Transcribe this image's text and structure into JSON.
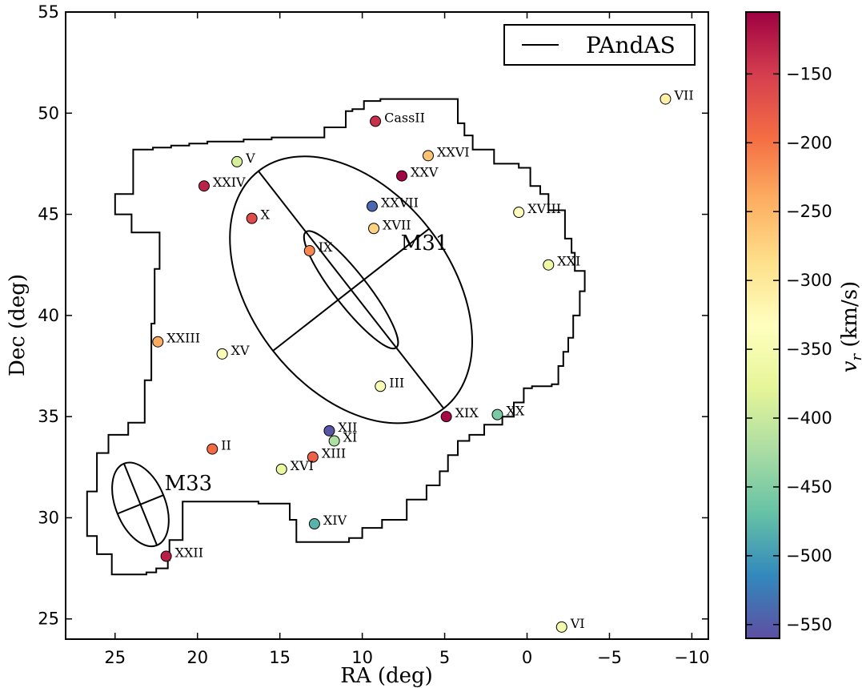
{
  "chart_data": {
    "type": "scatter",
    "xlabel": "RA (deg)",
    "ylabel": "Dec (deg)",
    "xlim": [
      28,
      -11
    ],
    "ylim": [
      24,
      55
    ],
    "xticks": [
      25,
      20,
      15,
      10,
      5,
      0,
      -5,
      -10
    ],
    "xtick_labels": [
      "25",
      "20",
      "15",
      "10",
      "5",
      "0",
      "−5",
      "−10"
    ],
    "yticks": [
      25,
      30,
      35,
      40,
      45,
      50,
      55
    ],
    "ytick_labels": [
      "25",
      "30",
      "35",
      "40",
      "45",
      "50",
      "55"
    ],
    "colorbar": {
      "label": "v_r (km/s)",
      "label_main": "v",
      "label_sub": "r",
      "label_rest": " (km/s)",
      "range": [
        -560,
        -105
      ],
      "ticks": [
        -150,
        -200,
        -250,
        -300,
        -350,
        -400,
        -450,
        -500,
        -550
      ],
      "tick_labels": [
        "−150",
        "−200",
        "−250",
        "−300",
        "−350",
        "−400",
        "−450",
        "−500",
        "−550"
      ],
      "colormap": "Spectral"
    },
    "legend": {
      "position": "top-right",
      "entries": [
        {
          "label": "PAndAS",
          "style": "line",
          "color": "#000000"
        }
      ]
    },
    "points": [
      {
        "name": "CassII",
        "ra": 9.2,
        "dec": 49.6,
        "vr": -140
      },
      {
        "name": "XXVI",
        "ra": 6.0,
        "dec": 47.9,
        "vr": -260
      },
      {
        "name": "XXV",
        "ra": 7.6,
        "dec": 46.9,
        "vr": -108
      },
      {
        "name": "V",
        "ra": 17.6,
        "dec": 47.6,
        "vr": -390
      },
      {
        "name": "XXIV",
        "ra": 19.6,
        "dec": 46.4,
        "vr": -130
      },
      {
        "name": "XXVII",
        "ra": 9.4,
        "dec": 45.4,
        "vr": -540
      },
      {
        "name": "XVII",
        "ra": 9.3,
        "dec": 44.3,
        "vr": -275
      },
      {
        "name": "X",
        "ra": 16.7,
        "dec": 44.8,
        "vr": -165
      },
      {
        "name": "XVIII",
        "ra": 0.5,
        "dec": 45.1,
        "vr": -330
      },
      {
        "name": "IX",
        "ra": 13.2,
        "dec": 43.2,
        "vr": -215
      },
      {
        "name": "XXI",
        "ra": -1.3,
        "dec": 42.5,
        "vr": -362
      },
      {
        "name": "VII",
        "ra": -8.4,
        "dec": 50.7,
        "vr": -310
      },
      {
        "name": "XXIII",
        "ra": 22.4,
        "dec": 38.7,
        "vr": -240
      },
      {
        "name": "XV",
        "ra": 18.5,
        "dec": 38.1,
        "vr": -340
      },
      {
        "name": "III",
        "ra": 8.9,
        "dec": 36.5,
        "vr": -345
      },
      {
        "name": "XIX",
        "ra": 4.9,
        "dec": 35.0,
        "vr": -112
      },
      {
        "name": "XX",
        "ra": 1.8,
        "dec": 35.1,
        "vr": -456
      },
      {
        "name": "XII",
        "ra": 12.0,
        "dec": 34.3,
        "vr": -555
      },
      {
        "name": "XI",
        "ra": 11.7,
        "dec": 33.8,
        "vr": -420
      },
      {
        "name": "II",
        "ra": 19.1,
        "dec": 33.4,
        "vr": -194
      },
      {
        "name": "XIII",
        "ra": 13.0,
        "dec": 33.0,
        "vr": -185
      },
      {
        "name": "XVI",
        "ra": 14.9,
        "dec": 32.4,
        "vr": -367
      },
      {
        "name": "XIV",
        "ra": 12.9,
        "dec": 29.7,
        "vr": -481
      },
      {
        "name": "XXII",
        "ra": 21.9,
        "dec": 28.1,
        "vr": -127
      },
      {
        "name": "VI",
        "ra": -2.1,
        "dec": 24.6,
        "vr": -354
      }
    ],
    "galaxies": [
      {
        "name": "M31",
        "ra": 10.68,
        "dec": 41.27,
        "rx": 5.4,
        "ry": 8.2,
        "angle": 38,
        "inner_rx": 0.9,
        "inner_ry": 4.0
      },
      {
        "name": "M33",
        "ra": 23.46,
        "dec": 30.66,
        "rx": 1.35,
        "ry": 2.4,
        "angle": 22
      }
    ],
    "footprint": [
      [
        26.7,
        29.1
      ],
      [
        26.7,
        31.3
      ],
      [
        26.1,
        31.3
      ],
      [
        26.1,
        33.2
      ],
      [
        25.4,
        33.2
      ],
      [
        25.4,
        34.1
      ],
      [
        24.2,
        34.1
      ],
      [
        24.2,
        34.7
      ],
      [
        23.2,
        34.7
      ],
      [
        23.2,
        36.8
      ],
      [
        22.8,
        36.8
      ],
      [
        22.8,
        39.6
      ],
      [
        22.6,
        39.6
      ],
      [
        22.6,
        42.3
      ],
      [
        22.3,
        42.3
      ],
      [
        22.3,
        44.1
      ],
      [
        24.0,
        44.1
      ],
      [
        24.0,
        45.0
      ],
      [
        25.0,
        45.0
      ],
      [
        25.0,
        46.0
      ],
      [
        23.9,
        46.0
      ],
      [
        23.9,
        48.2
      ],
      [
        22.7,
        48.2
      ],
      [
        22.7,
        48.3
      ],
      [
        21.6,
        48.3
      ],
      [
        21.6,
        48.4
      ],
      [
        20.5,
        48.4
      ],
      [
        20.5,
        48.5
      ],
      [
        19.4,
        48.5
      ],
      [
        19.4,
        48.6
      ],
      [
        17.2,
        48.6
      ],
      [
        17.2,
        48.7
      ],
      [
        15.5,
        48.7
      ],
      [
        15.5,
        48.8
      ],
      [
        12.3,
        48.8
      ],
      [
        12.3,
        49.3
      ],
      [
        11.0,
        49.3
      ],
      [
        11.0,
        50.1
      ],
      [
        10.6,
        50.1
      ],
      [
        10.6,
        50.2
      ],
      [
        9.9,
        50.2
      ],
      [
        9.9,
        50.6
      ],
      [
        8.9,
        50.6
      ],
      [
        8.9,
        50.7
      ],
      [
        4.2,
        50.7
      ],
      [
        4.2,
        49.5
      ],
      [
        3.8,
        49.5
      ],
      [
        3.8,
        48.9
      ],
      [
        3.3,
        48.9
      ],
      [
        3.3,
        48.2
      ],
      [
        2.0,
        48.2
      ],
      [
        2.0,
        47.5
      ],
      [
        0.5,
        47.5
      ],
      [
        0.5,
        47.3
      ],
      [
        -0.2,
        47.3
      ],
      [
        -0.2,
        46.4
      ],
      [
        -0.8,
        46.4
      ],
      [
        -0.8,
        46.0
      ],
      [
        -1.3,
        46.0
      ],
      [
        -1.3,
        45.2
      ],
      [
        -2.3,
        45.2
      ],
      [
        -2.3,
        43.8
      ],
      [
        -2.7,
        43.8
      ],
      [
        -2.7,
        43.1
      ],
      [
        -2.9,
        43.1
      ],
      [
        -2.9,
        42.2
      ],
      [
        -3.5,
        42.2
      ],
      [
        -3.5,
        41.2
      ],
      [
        -3.2,
        41.2
      ],
      [
        -3.2,
        40.0
      ],
      [
        -2.8,
        40.0
      ],
      [
        -2.8,
        38.9
      ],
      [
        -2.5,
        38.9
      ],
      [
        -2.5,
        38.2
      ],
      [
        -2.2,
        38.2
      ],
      [
        -2.2,
        37.5
      ],
      [
        -1.9,
        37.5
      ],
      [
        -1.9,
        36.6
      ],
      [
        -1.5,
        36.6
      ],
      [
        -1.5,
        36.5
      ],
      [
        -0.3,
        36.5
      ],
      [
        -0.3,
        36.4
      ],
      [
        0.2,
        36.4
      ],
      [
        0.2,
        35.7
      ],
      [
        0.8,
        35.7
      ],
      [
        0.8,
        35.0
      ],
      [
        1.5,
        35.0
      ],
      [
        1.5,
        34.6
      ],
      [
        2.6,
        34.6
      ],
      [
        2.6,
        34.1
      ],
      [
        3.5,
        34.1
      ],
      [
        3.5,
        33.8
      ],
      [
        4.2,
        33.8
      ],
      [
        4.2,
        33.1
      ],
      [
        4.8,
        33.1
      ],
      [
        4.8,
        32.3
      ],
      [
        5.3,
        32.3
      ],
      [
        5.3,
        31.6
      ],
      [
        6.1,
        31.6
      ],
      [
        6.1,
        30.9
      ],
      [
        7.3,
        30.9
      ],
      [
        7.3,
        29.9
      ],
      [
        8.8,
        29.9
      ],
      [
        8.8,
        29.5
      ],
      [
        10.0,
        29.5
      ],
      [
        10.0,
        29.0
      ],
      [
        10.8,
        29.0
      ],
      [
        10.8,
        28.8
      ],
      [
        14.0,
        28.8
      ],
      [
        14.0,
        29.9
      ],
      [
        14.4,
        29.9
      ],
      [
        14.4,
        30.7
      ],
      [
        16.3,
        30.7
      ],
      [
        16.3,
        30.8
      ],
      [
        20.9,
        30.8
      ],
      [
        20.9,
        28.9
      ],
      [
        21.7,
        28.9
      ],
      [
        21.7,
        27.9
      ],
      [
        21.8,
        27.9
      ],
      [
        21.8,
        27.5
      ],
      [
        22.5,
        27.5
      ],
      [
        22.5,
        27.3
      ],
      [
        23.1,
        27.3
      ],
      [
        23.1,
        27.2
      ],
      [
        25.2,
        27.2
      ],
      [
        25.2,
        28.2
      ],
      [
        26.1,
        28.2
      ],
      [
        26.1,
        29.1
      ],
      [
        26.7,
        29.1
      ]
    ]
  }
}
